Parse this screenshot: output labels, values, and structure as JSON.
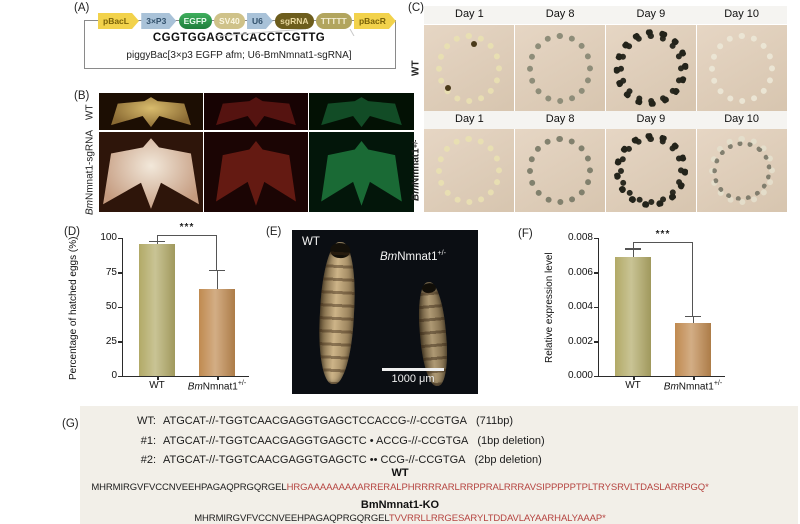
{
  "panels": {
    "a_label": "(A)",
    "b_label": "(B)",
    "c_label": "(C)",
    "d_label": "(D)",
    "e_label": "(E)",
    "f_label": "(F)",
    "g_label": "(G)"
  },
  "colors": {
    "wt_bar": "#b2aa67",
    "mutant_bar": "#c08a50",
    "red_sequence_text": "#b5433f"
  },
  "panel_a": {
    "elements": [
      {
        "label": "pBacL",
        "type": "arrow-yellow"
      },
      {
        "label": "3×P3",
        "type": "arrow-blue"
      },
      {
        "label": "EGFP",
        "type": "pill-green"
      },
      {
        "label": "SV40",
        "type": "pill-tan"
      },
      {
        "label": "U6",
        "type": "arrow-blue"
      },
      {
        "label": "sgRNA",
        "type": "pill-darkolive"
      },
      {
        "label": "TTTTT",
        "type": "pill-olive"
      },
      {
        "label": "pBacR",
        "type": "arrow-yellow"
      }
    ],
    "target_sequence": "CGGTGGAGCTCACCTCGTTG",
    "construct_name": "piggyBac[3×p3 EGFP afm; U6-BmNmnat1-sgRNA]"
  },
  "panel_b": {
    "row_labels": [
      "WT",
      "BmNmnat1-sgRNA"
    ]
  },
  "panel_c": {
    "day_labels": [
      "Day 1",
      "Day 8",
      "Day 9",
      "Day 10"
    ],
    "row_labels": [
      "WT",
      "BmNmnat1+/-"
    ]
  },
  "panel_e": {
    "wt_label": "WT",
    "mutant_label": "BmNmnat1+/-",
    "scale_bar_label": "1000 μm"
  },
  "panel_g": {
    "dna_lines": [
      {
        "label": "WT:",
        "seq": "ATGCAT-//-TGGTCAACGAGGTGAGCTCCACCG-//-CCGTGA",
        "note": "(711bp)"
      },
      {
        "label": "#1:",
        "seq": "ATGCAT-//-TGGTCAACGAGGTGAGCTC • ACCG-//-CCGTGA",
        "note": "(1bp deletion)"
      },
      {
        "label": "#2:",
        "seq": "ATGCAT-//-TGGTCAACGAGGTGAGCTC •• CCG-//-CCGTGA",
        "note": "(2bp deletion)"
      }
    ],
    "protein_wt_heading": "WT",
    "protein_wt_common": "MHRMIRGVFVCCNVEEHPAGAQPRGQRGEL",
    "protein_wt_unique": "HRGAAAAAAAAARRERALPHRRRRARLRRPPRALRRRAVSIPPPPPTPLTRYSRVLTDASLARRPGQ*",
    "protein_ko_heading": "BmNmnat1-KO",
    "protein_ko_common": "MHRMIRGVFVCCNVEEHPAGAQPRGQRGEL",
    "protein_ko_unique": "TVVRRLLRRGESARYLTDDAVLAYAARHALYAAAP*"
  },
  "chart_data": [
    {
      "type": "bar",
      "panel": "D",
      "categories": [
        "WT",
        "BmNmnat1+/-"
      ],
      "values": [
        96,
        63
      ],
      "errors": [
        2,
        14
      ],
      "title": "",
      "xlabel": "",
      "ylabel": "Percentage of hatched eggs (%)",
      "ylim": [
        0,
        100
      ],
      "yticks": [
        "0",
        "25",
        "50",
        "75",
        "100"
      ],
      "significance": "***",
      "grid": false,
      "legend": false,
      "bar_colors": [
        "#b2aa67",
        "#c08a50"
      ]
    },
    {
      "type": "bar",
      "panel": "F",
      "categories": [
        "WT",
        "BmNmnat1+/-"
      ],
      "values": [
        0.0069,
        0.0031
      ],
      "errors": [
        0.0005,
        0.0004
      ],
      "title": "",
      "xlabel": "",
      "ylabel": "Relative expression level",
      "ylim": [
        0,
        0.008
      ],
      "yticks": [
        "0.000",
        "0.002",
        "0.004",
        "0.006",
        "0.008"
      ],
      "significance": "***",
      "grid": false,
      "legend": false,
      "bar_colors": [
        "#b2aa67",
        "#c08a50"
      ]
    }
  ]
}
